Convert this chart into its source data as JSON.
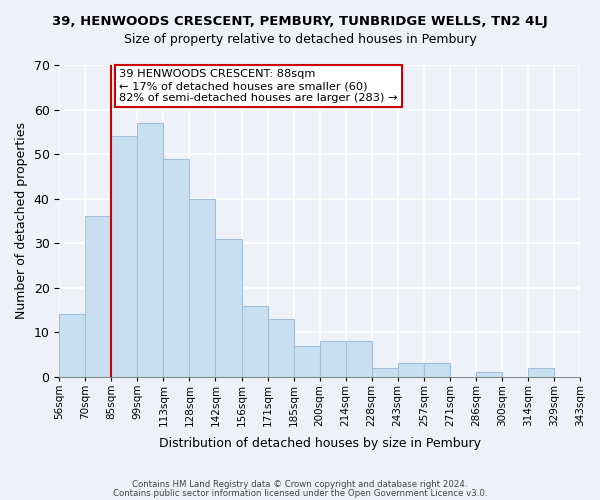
{
  "title": "39, HENWOODS CRESCENT, PEMBURY, TUNBRIDGE WELLS, TN2 4LJ",
  "subtitle": "Size of property relative to detached houses in Pembury",
  "xlabel": "Distribution of detached houses by size in Pembury",
  "ylabel": "Number of detached properties",
  "bin_labels": [
    "56sqm",
    "70sqm",
    "85sqm",
    "99sqm",
    "113sqm",
    "128sqm",
    "142sqm",
    "156sqm",
    "171sqm",
    "185sqm",
    "200sqm",
    "214sqm",
    "228sqm",
    "243sqm",
    "257sqm",
    "271sqm",
    "286sqm",
    "300sqm",
    "314sqm",
    "329sqm",
    "343sqm"
  ],
  "bar_heights": [
    14,
    36,
    54,
    57,
    49,
    40,
    31,
    16,
    13,
    7,
    8,
    8,
    2,
    3,
    3,
    0,
    1,
    0,
    2,
    0
  ],
  "bar_color": "#c8dff0",
  "bar_edge_color": "#a0c0dc",
  "vline_x_index": 2,
  "vline_color": "#cc0000",
  "annotation_title": "39 HENWOODS CRESCENT: 88sqm",
  "annotation_line1": "← 17% of detached houses are smaller (60)",
  "annotation_line2": "82% of semi-detached houses are larger (283) →",
  "annotation_box_color": "#ffffff",
  "annotation_box_edge": "#cc0000",
  "ylim": [
    0,
    70
  ],
  "yticks": [
    0,
    10,
    20,
    30,
    40,
    50,
    60,
    70
  ],
  "footer1": "Contains HM Land Registry data © Crown copyright and database right 2024.",
  "footer2": "Contains public sector information licensed under the Open Government Licence v3.0.",
  "background_color": "#eef2f8"
}
